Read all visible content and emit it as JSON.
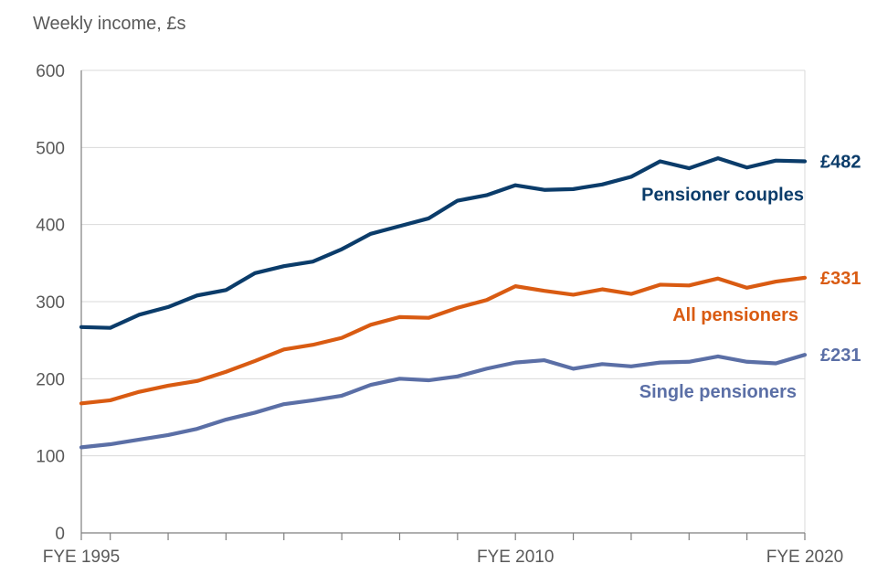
{
  "chart_data": {
    "type": "line",
    "ylabel": "Weekly income, £s",
    "ylim": [
      0,
      600
    ],
    "yticks": [
      0,
      100,
      200,
      300,
      400,
      500,
      600
    ],
    "grid": "horizontal",
    "x": [
      "FYE 1995",
      "FYE 1996",
      "FYE 1997",
      "FYE 1998",
      "FYE 1999",
      "FYE 2000",
      "FYE 2001",
      "FYE 2002",
      "FYE 2003",
      "FYE 2004",
      "FYE 2005",
      "FYE 2006",
      "FYE 2007",
      "FYE 2008",
      "FYE 2009",
      "FYE 2010",
      "FYE 2011",
      "FYE 2012",
      "FYE 2013",
      "FYE 2014",
      "FYE 2015",
      "FYE 2016",
      "FYE 2017",
      "FYE 2018",
      "FYE 2019",
      "FYE 2020"
    ],
    "x_tick_labels": [
      {
        "label": "FYE 1995",
        "index": 0
      },
      {
        "label": "FYE 2010",
        "index": 15
      },
      {
        "label": "FYE 2020",
        "index": 25
      }
    ],
    "series": [
      {
        "name": "Pensioner couples",
        "end_label": "£482",
        "color": "#0b3c6a",
        "values": [
          267,
          266,
          283,
          293,
          308,
          315,
          337,
          346,
          352,
          368,
          388,
          398,
          408,
          431,
          438,
          451,
          445,
          446,
          452,
          462,
          482,
          473,
          486,
          474,
          483,
          482
        ]
      },
      {
        "name": "All pensioners",
        "end_label": "£331",
        "color": "#d95b12",
        "values": [
          168,
          172,
          183,
          191,
          197,
          209,
          223,
          238,
          244,
          253,
          270,
          280,
          279,
          292,
          302,
          320,
          314,
          309,
          316,
          310,
          322,
          321,
          330,
          318,
          326,
          331
        ]
      },
      {
        "name": "Single pensioners",
        "end_label": "£231",
        "color": "#5b6fa6",
        "values": [
          111,
          115,
          121,
          127,
          135,
          147,
          156,
          167,
          172,
          178,
          192,
          200,
          198,
          203,
          213,
          221,
          224,
          213,
          219,
          216,
          221,
          222,
          229,
          222,
          220,
          231
        ]
      }
    ]
  }
}
